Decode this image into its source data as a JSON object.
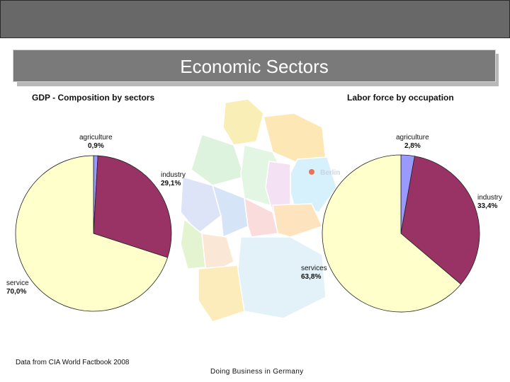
{
  "slide": {
    "title": "Economic Sectors",
    "source_note": "Data from CIA World Factbook 2008",
    "footer": "Doing Business in Germany",
    "map_label": "Berlin"
  },
  "colors": {
    "agriculture": "#9999ff",
    "industry": "#993366",
    "service": "#ffffcc"
  },
  "chart_data": [
    {
      "type": "pie",
      "title": "GDP - Composition by sectors",
      "slices": [
        {
          "name": "agriculture",
          "label": "agriculture",
          "value": 0.9,
          "value_label": "0,9%"
        },
        {
          "name": "industry",
          "label": "industry",
          "value": 29.1,
          "value_label": "29,1%"
        },
        {
          "name": "service",
          "label": "service",
          "value": 70.0,
          "value_label": "70,0%"
        }
      ]
    },
    {
      "type": "pie",
      "title": "Labor force by occupation",
      "slices": [
        {
          "name": "agriculture",
          "label": "agriculture",
          "value": 2.8,
          "value_label": "2,8%"
        },
        {
          "name": "industry",
          "label": "industry",
          "value": 33.4,
          "value_label": "33,4%"
        },
        {
          "name": "service",
          "label": "services",
          "value": 63.8,
          "value_label": "63,8%"
        }
      ]
    }
  ]
}
